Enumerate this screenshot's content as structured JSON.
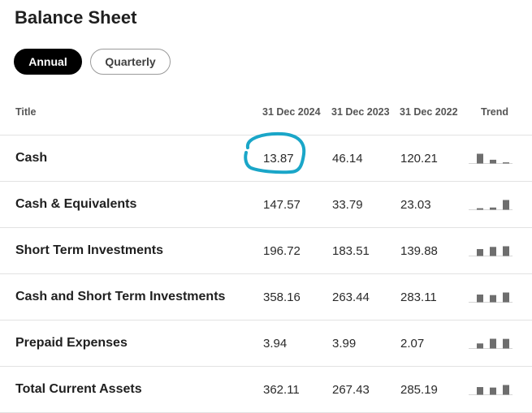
{
  "page": {
    "title": "Balance Sheet"
  },
  "period_toggle": {
    "annual_label": "Annual",
    "quarterly_label": "Quarterly",
    "selected": "Annual"
  },
  "table": {
    "headers": {
      "title": "Title",
      "col1": "31 Dec 2024",
      "col2": "31 Dec 2023",
      "col3": "31 Dec 2022",
      "trend": "Trend"
    },
    "rows": [
      {
        "title": "Cash",
        "v2024": "13.87",
        "v2023": "46.14",
        "v2022": "120.21"
      },
      {
        "title": "Cash & Equivalents",
        "v2024": "147.57",
        "v2023": "33.79",
        "v2022": "23.03"
      },
      {
        "title": "Short Term Investments",
        "v2024": "196.72",
        "v2023": "183.51",
        "v2022": "139.88"
      },
      {
        "title": "Cash and Short Term Investments",
        "v2024": "358.16",
        "v2023": "263.44",
        "v2022": "283.11"
      },
      {
        "title": "Prepaid Expenses",
        "v2024": "3.94",
        "v2023": "3.99",
        "v2022": "2.07"
      },
      {
        "title": "Total Current Assets",
        "v2024": "362.11",
        "v2023": "267.43",
        "v2022": "285.19"
      }
    ]
  },
  "colors": {
    "annotation": "#1aa6c8",
    "trend_bar": "#6e6e6e",
    "active_pill": "#000000"
  }
}
